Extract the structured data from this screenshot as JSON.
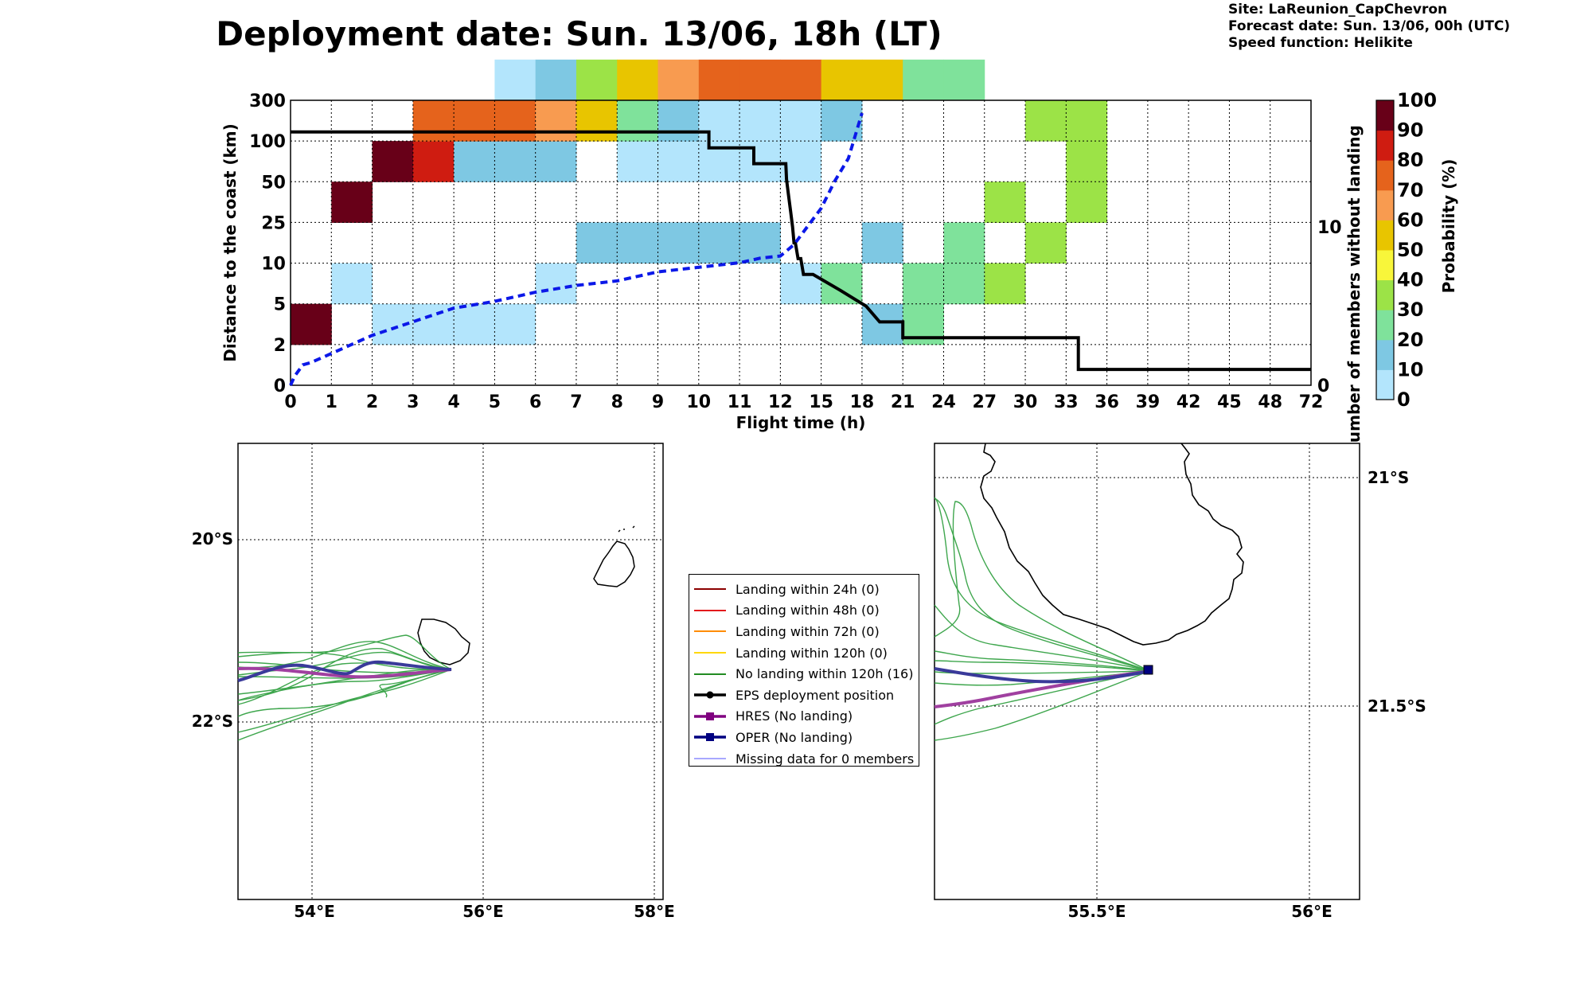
{
  "title": "Deployment date: Sun. 13/06, 18h (LT)",
  "meta": {
    "site": "Site: LaReunion_CapChevron",
    "forecast": "Forecast date: Sun. 13/06, 00h (UTC)",
    "speed": "Speed function: Helikite"
  },
  "chart_data": [
    {
      "type": "heatmap",
      "title": "",
      "xlabel": "Flight time (h)",
      "ylabel": "Distance to the coast (km)",
      "y2label": "Number of members without landing",
      "x_ticks": [
        "0",
        "1",
        "2",
        "3",
        "4",
        "5",
        "6",
        "7",
        "8",
        "9",
        "10",
        "11",
        "12",
        "15",
        "18",
        "21",
        "24",
        "27",
        "30",
        "33",
        "36",
        "39",
        "42",
        "45",
        "48",
        "72"
      ],
      "y_ticks": [
        "0",
        "2",
        "5",
        "10",
        "25",
        "50",
        "100",
        "300"
      ],
      "y2_ticks": [
        "0",
        "10"
      ],
      "y2lim": [
        0,
        18
      ],
      "colorbar": {
        "label": "Probability (%)",
        "ticks": [
          "0",
          "10",
          "20",
          "30",
          "40",
          "50",
          "60",
          "70",
          "80",
          "90",
          "100"
        ],
        "colors": [
          "#b3e5fc",
          "#7ec8e3",
          "#7fe29b",
          "#9ce347",
          "#f8f63a",
          "#e8c500",
          "#f89b50",
          "#e5631c",
          "#cf1c11",
          "#680018"
        ]
      },
      "grid": true,
      "cells_note": "col = x-bin index (0..24), row = y-bin index (0 = 0-2 km ... 6 = 100-300 km), bin = colorbar bin",
      "cells": [
        [
          0,
          1,
          9
        ],
        [
          1,
          2,
          0
        ],
        [
          1,
          4,
          9
        ],
        [
          2,
          1,
          0
        ],
        [
          2,
          5,
          9
        ],
        [
          3,
          1,
          0
        ],
        [
          3,
          5,
          8
        ],
        [
          3,
          6,
          7
        ],
        [
          3,
          6,
          7
        ],
        [
          4,
          1,
          0
        ],
        [
          4,
          5,
          1
        ],
        [
          4,
          6,
          7
        ],
        [
          5,
          1,
          0
        ],
        [
          5,
          5,
          1
        ],
        [
          5,
          6,
          7
        ],
        [
          5,
          7,
          0
        ],
        [
          6,
          2,
          0
        ],
        [
          6,
          5,
          1
        ],
        [
          6,
          6,
          6
        ],
        [
          6,
          7,
          1
        ],
        [
          7,
          3,
          1
        ],
        [
          7,
          6,
          5
        ],
        [
          7,
          7,
          3
        ],
        [
          8,
          3,
          1
        ],
        [
          8,
          5,
          0
        ],
        [
          8,
          6,
          2
        ],
        [
          8,
          7,
          5
        ],
        [
          9,
          3,
          1
        ],
        [
          9,
          5,
          0
        ],
        [
          9,
          6,
          1
        ],
        [
          9,
          7,
          6
        ],
        [
          10,
          3,
          1
        ],
        [
          10,
          5,
          0
        ],
        [
          10,
          6,
          0
        ],
        [
          10,
          7,
          7
        ],
        [
          11,
          3,
          1
        ],
        [
          11,
          5,
          0
        ],
        [
          11,
          6,
          0
        ],
        [
          11,
          7,
          7
        ],
        [
          12,
          2,
          0
        ],
        [
          12,
          5,
          0
        ],
        [
          12,
          6,
          0
        ],
        [
          12,
          7,
          7
        ],
        [
          13,
          2,
          2
        ],
        [
          13,
          6,
          1
        ],
        [
          13,
          7,
          5
        ],
        [
          14,
          1,
          1
        ],
        [
          14,
          3,
          1
        ],
        [
          14,
          7,
          5
        ],
        [
          15,
          1,
          2
        ],
        [
          15,
          2,
          2
        ],
        [
          15,
          7,
          2
        ],
        [
          16,
          2,
          2
        ],
        [
          16,
          3,
          2
        ],
        [
          16,
          7,
          2
        ],
        [
          17,
          2,
          3
        ],
        [
          17,
          4,
          3
        ],
        [
          18,
          3,
          3
        ],
        [
          18,
          6,
          3
        ],
        [
          19,
          4,
          3
        ],
        [
          19,
          5,
          3
        ],
        [
          19,
          6,
          3
        ]
      ],
      "members_without_landing": {
        "x": [
          0,
          10.25,
          10.25,
          11.35,
          11.35,
          12.4,
          12.45,
          12.6,
          12.75,
          12.9,
          13.0,
          13.1,
          13.3,
          13.5,
          13.7,
          14.4,
          14.4,
          16.4,
          16.4,
          18.3,
          18.3,
          19.3,
          19.3,
          21.0,
          21.0,
          24.0,
          25.4,
          25.4,
          33.9,
          33.9,
          72
        ],
        "y": [
          16,
          16,
          15,
          15,
          14,
          14,
          13,
          12,
          11,
          10,
          9,
          9,
          8,
          8,
          7,
          7,
          7,
          6,
          6,
          5,
          5,
          4,
          4,
          4,
          3,
          3,
          3,
          3,
          3,
          1,
          1
        ]
      },
      "cumulative_probability": {
        "x": [
          0,
          0.1,
          0.3,
          0.5,
          1,
          1.5,
          2,
          2.5,
          3,
          3.5,
          4,
          5,
          6,
          7,
          8,
          9,
          10,
          11,
          11.5,
          12,
          13,
          14,
          15,
          16,
          17,
          18
        ],
        "y": [
          0,
          4,
          9,
          10,
          14,
          18,
          22,
          25,
          28,
          31,
          34,
          37,
          41,
          44,
          46,
          50,
          52,
          54,
          56,
          57,
          62,
          70,
          78,
          90,
          100,
          120
        ]
      }
    },
    {
      "type": "map",
      "xlabel_ticks": [
        "54°E",
        "56°E",
        "58°E"
      ],
      "ylabel_ticks": [
        "20°S",
        "22°S"
      ]
    },
    {
      "type": "map",
      "xlabel_ticks": [
        "55.5°E",
        "56°E"
      ],
      "ylabel_ticks": [
        "21°S",
        "21.5°S"
      ]
    }
  ],
  "legend": [
    {
      "label": "Landing within 24h (0)",
      "color": "#8b0000",
      "style": "line"
    },
    {
      "label": "Landing within 48h (0)",
      "color": "#e31a1c",
      "style": "line"
    },
    {
      "label": "Landing within 72h (0)",
      "color": "#ff8c00",
      "style": "line"
    },
    {
      "label": "Landing within 120h (0)",
      "color": "#ffd700",
      "style": "line"
    },
    {
      "label": "No landing within 120h (16)",
      "color": "#228b22",
      "style": "line"
    },
    {
      "label": "EPS deployment position",
      "color": "#000000",
      "style": "circle"
    },
    {
      "label": "HRES (No landing)",
      "color": "#800080",
      "style": "square"
    },
    {
      "label": "OPER (No landing)",
      "color": "#000080",
      "style": "square"
    },
    {
      "label": "Missing data for 0 members",
      "color": "#5050ff",
      "style": "thin"
    }
  ]
}
